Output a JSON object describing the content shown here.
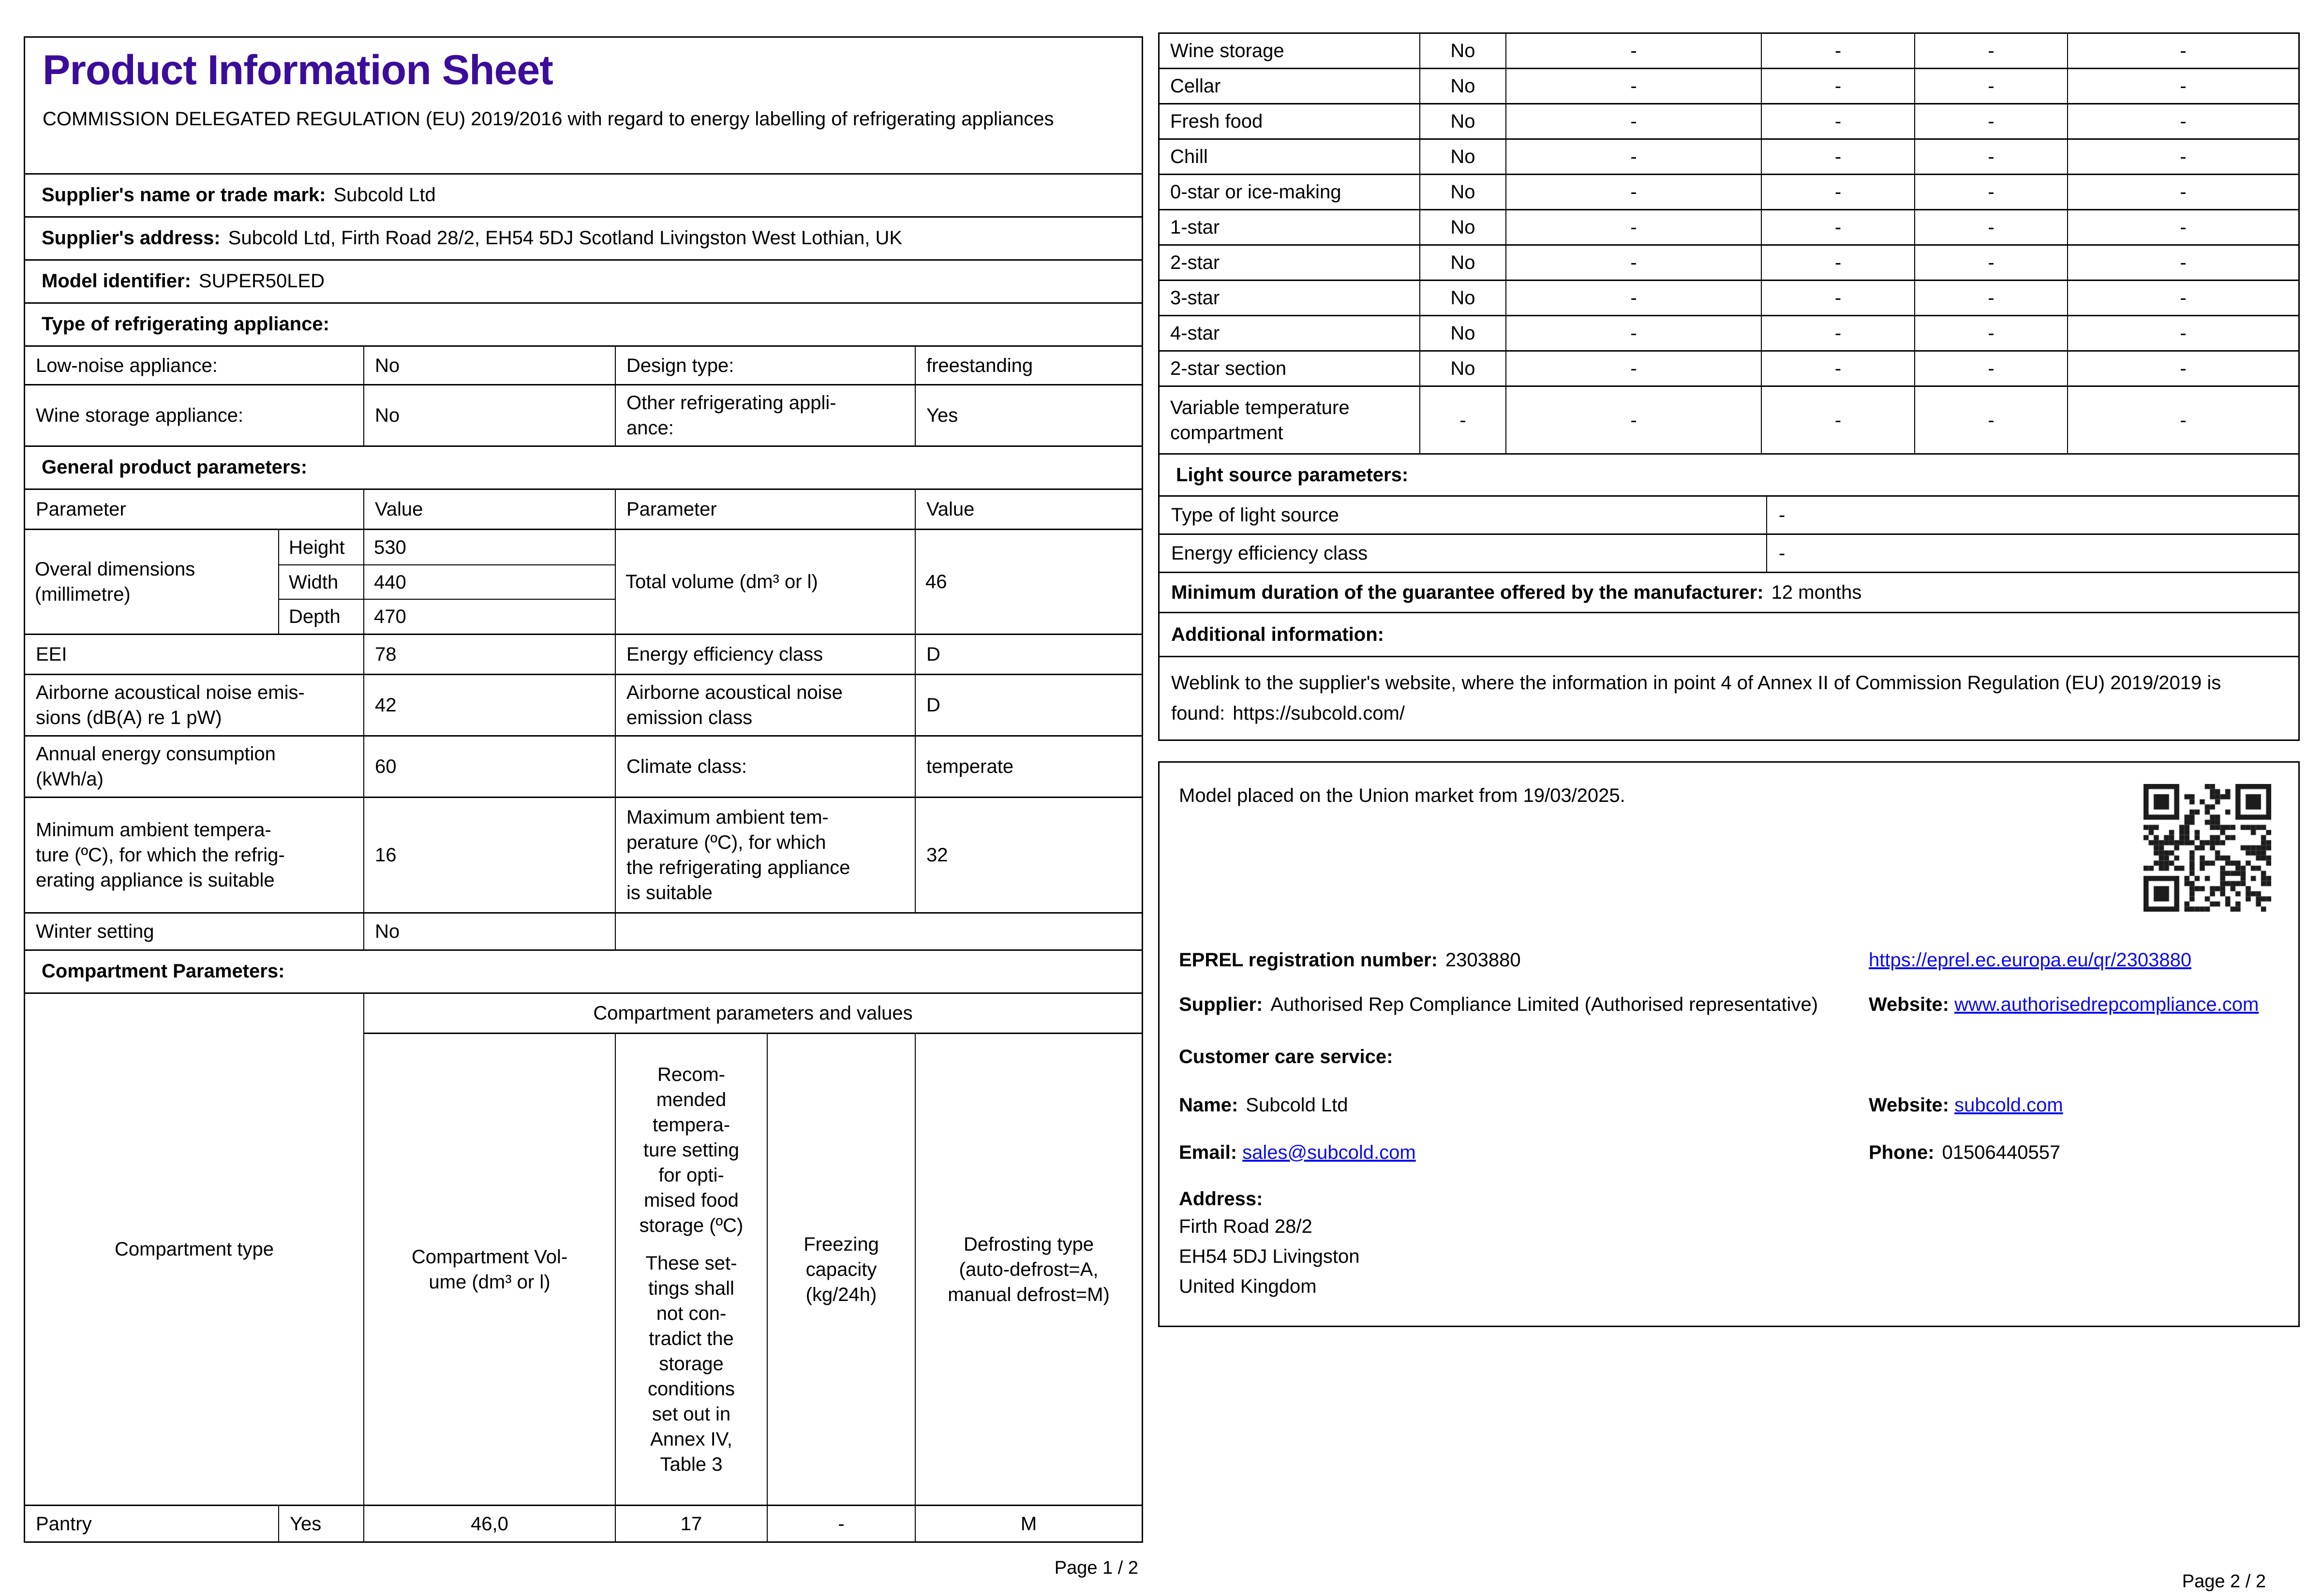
{
  "colors": {
    "title": "#3A0D9B",
    "link": "#0B0BEB",
    "border": "#000000"
  },
  "page1": {
    "title": "Product Information Sheet",
    "regulation": "COMMISSION DELEGATED REGULATION (EU) 2019/2016 with regard to energy labelling of refrigerating appliances",
    "supplier_name": {
      "label": "Supplier's name or trade mark:",
      "value": "Subcold Ltd"
    },
    "supplier_address": {
      "label": "Supplier's address:",
      "value": "Subcold Ltd, Firth Road 28/2, EH54 5DJ Scotland Livingston West Lothian, UK"
    },
    "model_identifier": {
      "label": "Model identifier:",
      "value": "SUPER50LED"
    },
    "type_section": {
      "header": "Type of refrigerating appliance:",
      "rows": [
        {
          "p1": "Low-noise appliance:",
          "v1": "No",
          "p2": "Design type:",
          "v2": "freestanding"
        },
        {
          "p1": "Wine storage appliance:",
          "v1": "No",
          "p2": "Other refrigerating appli-\nance:",
          "v2": "Yes"
        }
      ]
    },
    "general_section": {
      "header": "General product parameters:",
      "col_headers": {
        "p1": "Parameter",
        "v1": "Value",
        "p2": "Parameter",
        "v2": "Value"
      },
      "dimensions": {
        "label": "Overal dimensions\n(millimetre)",
        "rows": [
          {
            "k": "Height",
            "v": "530"
          },
          {
            "k": "Width",
            "v": "440"
          },
          {
            "k": "Depth",
            "v": "470"
          }
        ],
        "right_label": "Total volume (dm³ or l)",
        "right_value": "46"
      },
      "rows": [
        {
          "p1": "EEI",
          "v1": "78",
          "p2": "Energy efficiency class",
          "v2": "D"
        },
        {
          "p1": "Airborne acoustical noise emis-\nsions (dB(A) re 1 pW)",
          "v1": "42",
          "p2": "Airborne acoustical noise\nemission class",
          "v2": "D"
        },
        {
          "p1": "Annual energy consumption\n(kWh/a)",
          "v1": "60",
          "p2": "Climate class:",
          "v2": "temperate"
        },
        {
          "p1": "Minimum ambient tempera-\nture (ºC), for which the refrig-\nerating appliance is suitable",
          "v1": "16",
          "p2": "Maximum ambient tem-\nperature (ºC), for which\nthe refrigerating appliance\nis suitable",
          "v2": "32"
        }
      ],
      "winter": {
        "p1": "Winter setting",
        "v1": "No"
      }
    },
    "compartment_section": {
      "header": "Compartment Parameters:",
      "span_header": "Compartment parameters and values",
      "col1_header": "Compartment type",
      "col2_header": "Compartment Vol-\nume (dm³ or l)",
      "col3_header_a": "Recom-\nmended\ntempera-\nture setting\nfor opti-\nmised food\nstorage (ºC)",
      "col3_header_b": "These set-\ntings shall\nnot con-\ntradict the\nstorage\nconditions\nset out in\nAnnex IV,\nTable 3",
      "col4_header": "Freezing\ncapacity\n(kg/24h)",
      "col5_header": "Defrosting type\n(auto-defrost=A,\nmanual defrost=M)",
      "row": {
        "type": "Pantry",
        "present": "Yes",
        "volume": "46,0",
        "temp": "17",
        "freezing": "-",
        "defrost": "M"
      }
    },
    "footer": "Page 1 / 2"
  },
  "page2": {
    "dash": "-",
    "compartment_rows": [
      {
        "label": "Wine storage",
        "present": "No"
      },
      {
        "label": "Cellar",
        "present": "No"
      },
      {
        "label": "Fresh food",
        "present": "No"
      },
      {
        "label": "Chill",
        "present": "No"
      },
      {
        "label": "0-star or ice-making",
        "present": "No"
      },
      {
        "label": "1-star",
        "present": "No"
      },
      {
        "label": "2-star",
        "present": "No"
      },
      {
        "label": "3-star",
        "present": "No"
      },
      {
        "label": "4-star",
        "present": "No"
      },
      {
        "label": "2-star section",
        "present": "No"
      },
      {
        "label": "Variable temperature\ncompartment",
        "present": "-"
      }
    ],
    "light_section": {
      "header": "Light source parameters:",
      "rows": [
        {
          "label": "Type of light source",
          "value": "-"
        },
        {
          "label": "Energy efficiency class",
          "value": "-"
        }
      ]
    },
    "guarantee": {
      "label": "Minimum duration of the guarantee offered by the manufacturer:",
      "value": "12 months"
    },
    "additional_header": "Additional information:",
    "weblink": {
      "label": "Weblink to the supplier's website, where the information in point 4 of Annex II of Commission Regulation (EU) 2019/2019 is found:",
      "value": "https://subcold.com/"
    },
    "market_box": {
      "placed": "Model placed on the Union market from 19/03/2025.",
      "qr_icon": "qr-code",
      "eprel": {
        "label": "EPREL registration number:",
        "value": "2303880",
        "link": "https://eprel.ec.europa.eu/qr/2303880"
      },
      "supplier": {
        "label": "Supplier:",
        "value": "Authorised Rep Compliance Limited (Authorised representative)"
      },
      "website1": {
        "label": "Website:",
        "value": "www.authorisedrepcompliance.com"
      },
      "customer_care": "Customer care service:",
      "name": {
        "label": "Name:",
        "value": "Subcold Ltd"
      },
      "website2": {
        "label": "Website:",
        "value": "subcold.com"
      },
      "email": {
        "label": "Email:",
        "value": "sales@subcold.com"
      },
      "phone": {
        "label": "Phone:",
        "value": "01506440557"
      },
      "address": {
        "label": "Address:",
        "lines": "Firth Road 28/2\nEH54 5DJ Livingston\nUnited Kingdom"
      }
    },
    "footer": "Page 2 / 2"
  }
}
